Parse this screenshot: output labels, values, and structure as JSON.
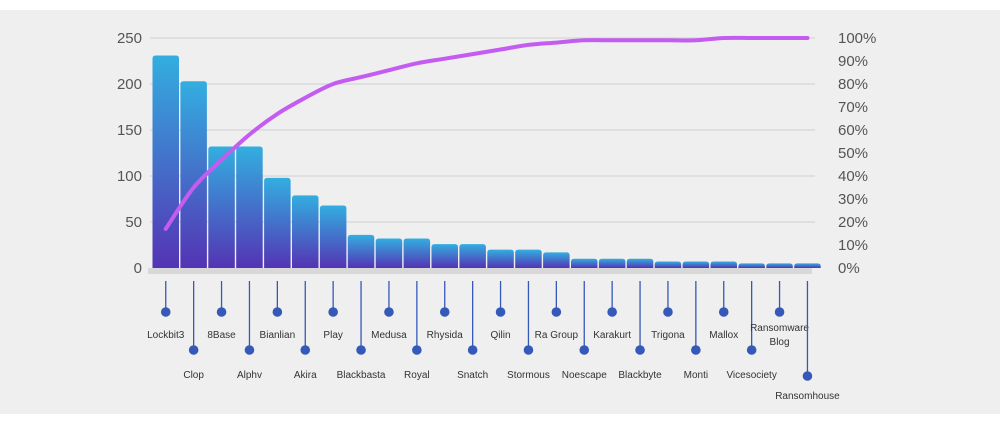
{
  "chart_data": {
    "type": "bar",
    "title": "",
    "xlabel": "",
    "ylabel": "",
    "categories": [
      "Lockbit3",
      "Clop",
      "8Base",
      "Alphv",
      "Bianlian",
      "Akira",
      "Play",
      "Blackbasta",
      "Medusa",
      "Royal",
      "Rhysida",
      "Snatch",
      "Qilin",
      "Stormous",
      "Ra Group",
      "Noescape",
      "Karakurt",
      "Blackbyte",
      "Trigona",
      "Monti",
      "Mallox",
      "Vicesociety",
      "Ransomware Blog",
      "Ransomhouse"
    ],
    "category_lines": [
      [
        "Lockbit3"
      ],
      [
        "Clop"
      ],
      [
        "8Base"
      ],
      [
        "Alphv"
      ],
      [
        "Bianlian"
      ],
      [
        "Akira"
      ],
      [
        "Play"
      ],
      [
        "Blackbasta"
      ],
      [
        "Medusa"
      ],
      [
        "Royal"
      ],
      [
        "Rhysida"
      ],
      [
        "Snatch"
      ],
      [
        "Qilin"
      ],
      [
        "Stormous"
      ],
      [
        "Ra Group"
      ],
      [
        "Noescape"
      ],
      [
        "Karakurt"
      ],
      [
        "Blackbyte"
      ],
      [
        "Trigona"
      ],
      [
        "Monti"
      ],
      [
        "Mallox"
      ],
      [
        "Vicesociety"
      ],
      [
        "Ransomware",
        "Blog"
      ],
      [
        "Ransomhouse"
      ]
    ],
    "series": [
      {
        "values": [
          231,
          203,
          132,
          132,
          98,
          79,
          68,
          36,
          32,
          32,
          26,
          26,
          20,
          20,
          17,
          10,
          10,
          10,
          7,
          7,
          7,
          5,
          5,
          5
        ]
      },
      {
        "type": "line",
        "axis": "right",
        "values": [
          17,
          35,
          47,
          58,
          67,
          74,
          80,
          83,
          86,
          89,
          91,
          93,
          95,
          97,
          98,
          99,
          99,
          99,
          99,
          99,
          100,
          100,
          100,
          100
        ]
      }
    ],
    "ylim": [
      0,
      250
    ],
    "yticks": [
      "0",
      "50",
      "100",
      "150",
      "200",
      "250"
    ],
    "y2lim": [
      0,
      100
    ],
    "y2ticks": [
      "0%",
      "10%",
      "20%",
      "30%",
      "40%",
      "50%",
      "60%",
      "70%",
      "80%",
      "90%",
      "100%"
    ],
    "grid": true,
    "colors": {
      "bar_top": "#33aee0",
      "bar_bottom": "#5433b4",
      "line": "#c45cf2",
      "grid": "#cfcfcf",
      "baseline": "#d8d8d8",
      "marker": "#3559b8"
    }
  }
}
